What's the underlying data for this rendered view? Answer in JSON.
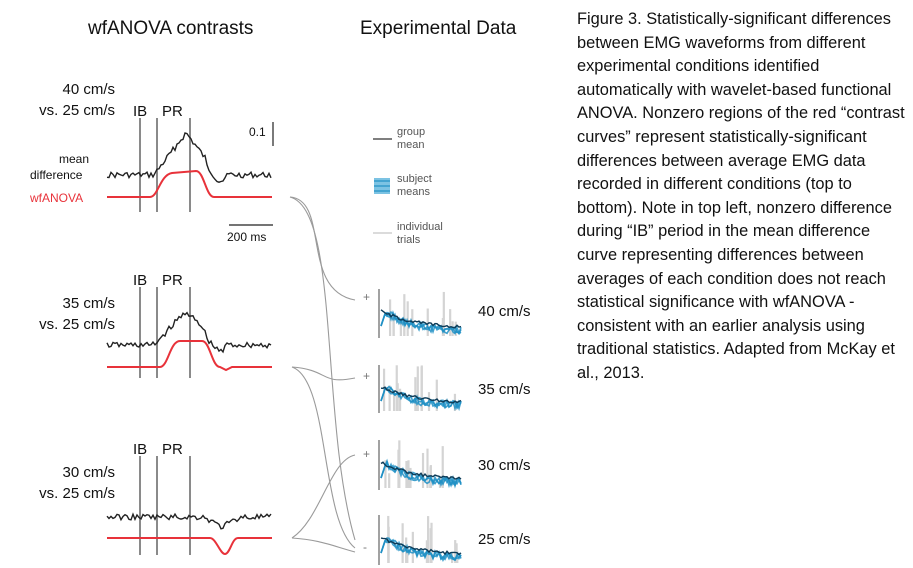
{
  "headers": {
    "left": "wfANOVA contrasts",
    "middle": "Experimental Data"
  },
  "panels": [
    {
      "comparison_line1": "40 cm/s",
      "comparison_line2": "vs. 25 cm/s",
      "period_ib": "IB",
      "period_pr": "PR"
    },
    {
      "comparison_line1": "35 cm/s",
      "comparison_line2": "vs. 25 cm/s",
      "period_ib": "IB",
      "period_pr": "PR"
    },
    {
      "comparison_line1": "30 cm/s",
      "comparison_line2": "vs. 25 cm/s",
      "period_ib": "IB",
      "period_pr": "PR"
    }
  ],
  "top_panel_labels": {
    "mean_difference_line1": "mean",
    "mean_difference_line2": "difference",
    "wfanova": "wfANOVA",
    "scale_value": "0.1",
    "time_scale": "200 ms"
  },
  "legend": {
    "group_mean_line1": "group",
    "group_mean_line2": "mean",
    "subject_means_line1": "subject",
    "subject_means_line2": "means",
    "individual_trials_line1": "individual",
    "individual_trials_line2": "trials"
  },
  "conditions": [
    {
      "label": "40 cm/s",
      "sign": "+"
    },
    {
      "label": "35 cm/s",
      "sign": "+"
    },
    {
      "label": "30 cm/s",
      "sign": "+"
    },
    {
      "label": "25 cm/s",
      "sign": "-"
    }
  ],
  "caption": "Figure 3. Statistically-significant differences between EMG waveforms from different experimental conditions identified automatically with wavelet-based functional ANOVA. Nonzero regions of the red “contrast curves” represent statistically-significant differences between average EMG data recorded in different conditions (top to bottom). Note in top left, nonzero difference during “IB” period in the mean difference curve representing differences between averages of each condition does not reach statistical significance with wfANOVA - consistent with an earlier analysis using traditional statistics. Adapted from McKay et al., 2013.",
  "colors": {
    "contrast_red": "#e8323a",
    "emg_blue": "#1f8fc4",
    "trial_gray": "#d4d4d4",
    "period_line_gray": "#8a8a8a"
  }
}
